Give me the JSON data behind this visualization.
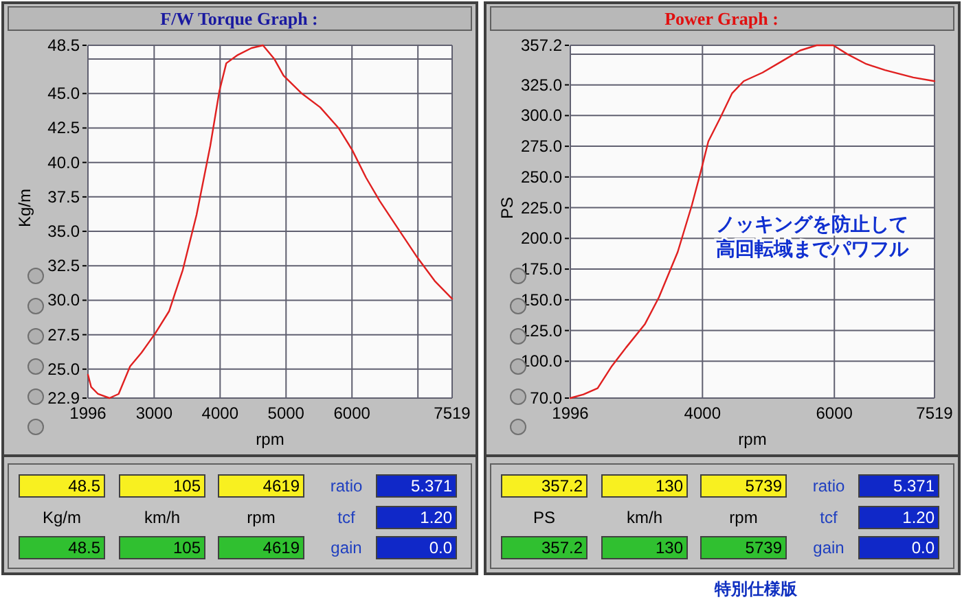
{
  "chart_data": [
    {
      "type": "line",
      "title": "F/W Torque Graph :",
      "xlabel": "rpm",
      "ylabel": "Kg/m",
      "grid": true,
      "xlim": [
        1996,
        7519
      ],
      "xticks": [
        1996,
        3000,
        4000,
        5000,
        6000,
        {
          "value": 7000,
          "label": null
        },
        7519
      ],
      "ylim": [
        22.9,
        48.5
      ],
      "yticks": [
        22.9,
        {
          "value": 25,
          "label": "25.0"
        },
        27.5,
        {
          "value": 30,
          "label": "30.0"
        },
        32.5,
        {
          "value": 35,
          "label": "35.0"
        },
        37.5,
        {
          "value": 40,
          "label": "40.0"
        },
        42.5,
        {
          "value": 45,
          "label": "45.0"
        },
        {
          "value": 47.5,
          "label": null
        },
        48.5
      ],
      "series": [
        {
          "color": "#e02020",
          "x": [
            1996,
            2045,
            2149,
            2322,
            2461,
            2635,
            2809,
            3017,
            3226,
            3434,
            3643,
            3851,
            3990,
            4094,
            4268,
            4476,
            4650,
            4823,
            4962,
            5240,
            5518,
            5796,
            6004,
            6213,
            6421,
            6699,
            6977,
            7255,
            7519
          ],
          "values": [
            24.6,
            23.7,
            23.2,
            22.9,
            23.2,
            25.2,
            26.2,
            27.6,
            29.2,
            32.2,
            36.2,
            41.2,
            45.2,
            47.2,
            47.8,
            48.3,
            48.5,
            47.5,
            46.3,
            45.0,
            44.0,
            42.5,
            40.9,
            38.9,
            37.2,
            35.2,
            33.2,
            31.4,
            30.1
          ]
        }
      ]
    },
    {
      "type": "line",
      "title": "Power Graph :",
      "xlabel": "rpm",
      "ylabel": "PS",
      "grid": true,
      "xlim": [
        1996,
        7519
      ],
      "xticks": [
        1996,
        4000,
        6000,
        7519
      ],
      "ylim": [
        70,
        357.2
      ],
      "yticks": [
        {
          "value": 70,
          "label": "70.0"
        },
        {
          "value": 100,
          "label": "100.0"
        },
        {
          "value": 125,
          "label": "125.0"
        },
        {
          "value": 150,
          "label": "150.0"
        },
        {
          "value": 175,
          "label": "175.0"
        },
        {
          "value": 200,
          "label": "200.0"
        },
        {
          "value": 225,
          "label": "225.0"
        },
        {
          "value": 250,
          "label": "250.0"
        },
        {
          "value": 275,
          "label": "275.0"
        },
        {
          "value": 300,
          "label": "300.0"
        },
        {
          "value": 325,
          "label": "325.0"
        },
        {
          "value": 350,
          "label": null
        },
        357.2
      ],
      "annotations": [
        "ノッキングを防止して",
        "高回転域までパワフル"
      ],
      "series": [
        {
          "color": "#e02020",
          "x": [
            1996,
            2196,
            2410,
            2625,
            2839,
            3125,
            3339,
            3625,
            3839,
            3982,
            4089,
            4268,
            4447,
            4625,
            4911,
            5197,
            5482,
            5732,
            5983,
            6197,
            6483,
            6768,
            7197,
            7519
          ],
          "values": [
            70,
            73,
            78,
            96,
            111,
            130,
            152,
            189,
            227,
            256,
            279,
            298,
            318,
            328,
            335,
            344,
            353,
            357.2,
            357.2,
            350,
            342,
            337,
            331,
            328
          ]
        }
      ]
    },
    {
      "type": "other",
      "annotations": [
        "48.5",
        "105",
        "4619",
        "ratio",
        "5.371",
        "Kg/m",
        "km/h",
        "rpm",
        "tcf",
        "1.20",
        "48.5",
        "105",
        "4619",
        "gain",
        "0.0"
      ]
    },
    {
      "type": "other",
      "annotations": [
        "357.2",
        "130",
        "5739",
        "ratio",
        "5.371",
        "PS",
        "km/h",
        "rpm",
        "tcf",
        "1.20",
        "357.2",
        "130",
        "5739",
        "gain",
        "0.0"
      ]
    },
    {
      "type": "other",
      "annotations": [
        "特別仕様版"
      ]
    }
  ]
}
